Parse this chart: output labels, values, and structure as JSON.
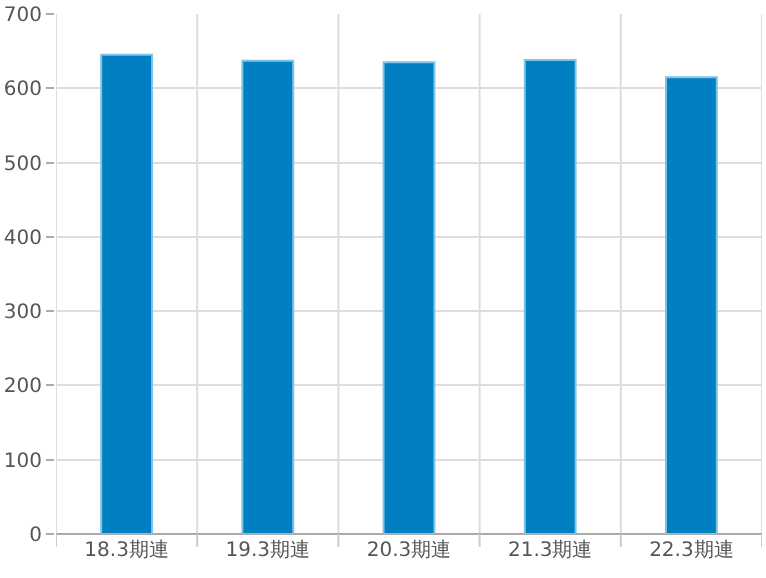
{
  "chart_data": {
    "type": "bar",
    "categories": [
      "18.3期連",
      "19.3期連",
      "20.3期連",
      "21.3期連",
      "22.3期連"
    ],
    "values": [
      645,
      637,
      635,
      638,
      615
    ],
    "color": "#007fc3",
    "ylim": [
      0,
      700
    ],
    "yticks": [
      0,
      100,
      200,
      300,
      400,
      500,
      600,
      700
    ],
    "grid": true
  }
}
